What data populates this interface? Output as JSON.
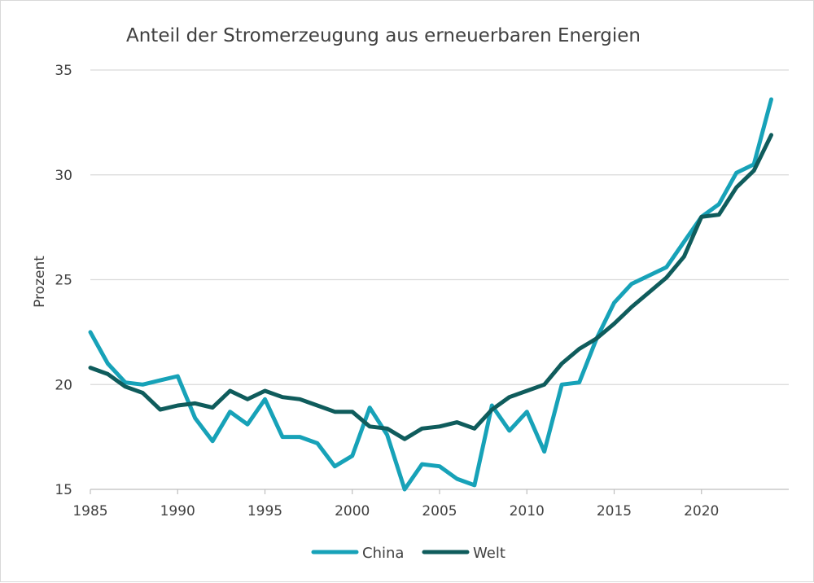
{
  "chart_data": {
    "type": "line",
    "title": "Anteil der Stromerzeugung aus erneuerbaren Energien",
    "xlabel": "",
    "ylabel": "Prozent",
    "xlim": [
      1985,
      2025
    ],
    "ylim": [
      15,
      35
    ],
    "xticks": [
      "1985",
      "1990",
      "1995",
      "2000",
      "2005",
      "2010",
      "2015",
      "2020"
    ],
    "yticks": [
      "15",
      "20",
      "25",
      "30",
      "35"
    ],
    "grid": true,
    "legend_position": "bottom",
    "x": [
      1985,
      1986,
      1987,
      1988,
      1989,
      1990,
      1991,
      1992,
      1993,
      1994,
      1995,
      1996,
      1997,
      1998,
      1999,
      2000,
      2001,
      2002,
      2003,
      2004,
      2005,
      2006,
      2007,
      2008,
      2009,
      2010,
      2011,
      2012,
      2013,
      2014,
      2015,
      2016,
      2017,
      2018,
      2019,
      2020,
      2021,
      2022,
      2023,
      2024
    ],
    "series": [
      {
        "name": "China",
        "color": "#17a2b8",
        "values": [
          22.5,
          21.0,
          20.1,
          20.0,
          20.2,
          20.4,
          18.4,
          17.3,
          18.7,
          18.1,
          19.3,
          17.5,
          17.5,
          17.2,
          16.1,
          16.6,
          18.9,
          17.6,
          15.0,
          16.2,
          16.1,
          15.5,
          15.2,
          19.0,
          17.8,
          18.7,
          16.8,
          20.0,
          20.1,
          22.2,
          23.9,
          24.8,
          25.2,
          25.6,
          26.8,
          28.0,
          28.6,
          30.1,
          30.5,
          33.6
        ]
      },
      {
        "name": "Welt",
        "color": "#0f5c5c",
        "values": [
          20.8,
          20.5,
          19.9,
          19.6,
          18.8,
          19.0,
          19.1,
          18.9,
          19.7,
          19.3,
          19.7,
          19.4,
          19.3,
          19.0,
          18.7,
          18.7,
          18.0,
          17.9,
          17.4,
          17.9,
          18.0,
          18.2,
          17.9,
          18.8,
          19.4,
          19.7,
          20.0,
          21.0,
          21.7,
          22.2,
          22.9,
          23.7,
          24.4,
          25.1,
          26.1,
          28.0,
          28.1,
          29.4,
          30.2,
          31.9
        ]
      }
    ]
  }
}
